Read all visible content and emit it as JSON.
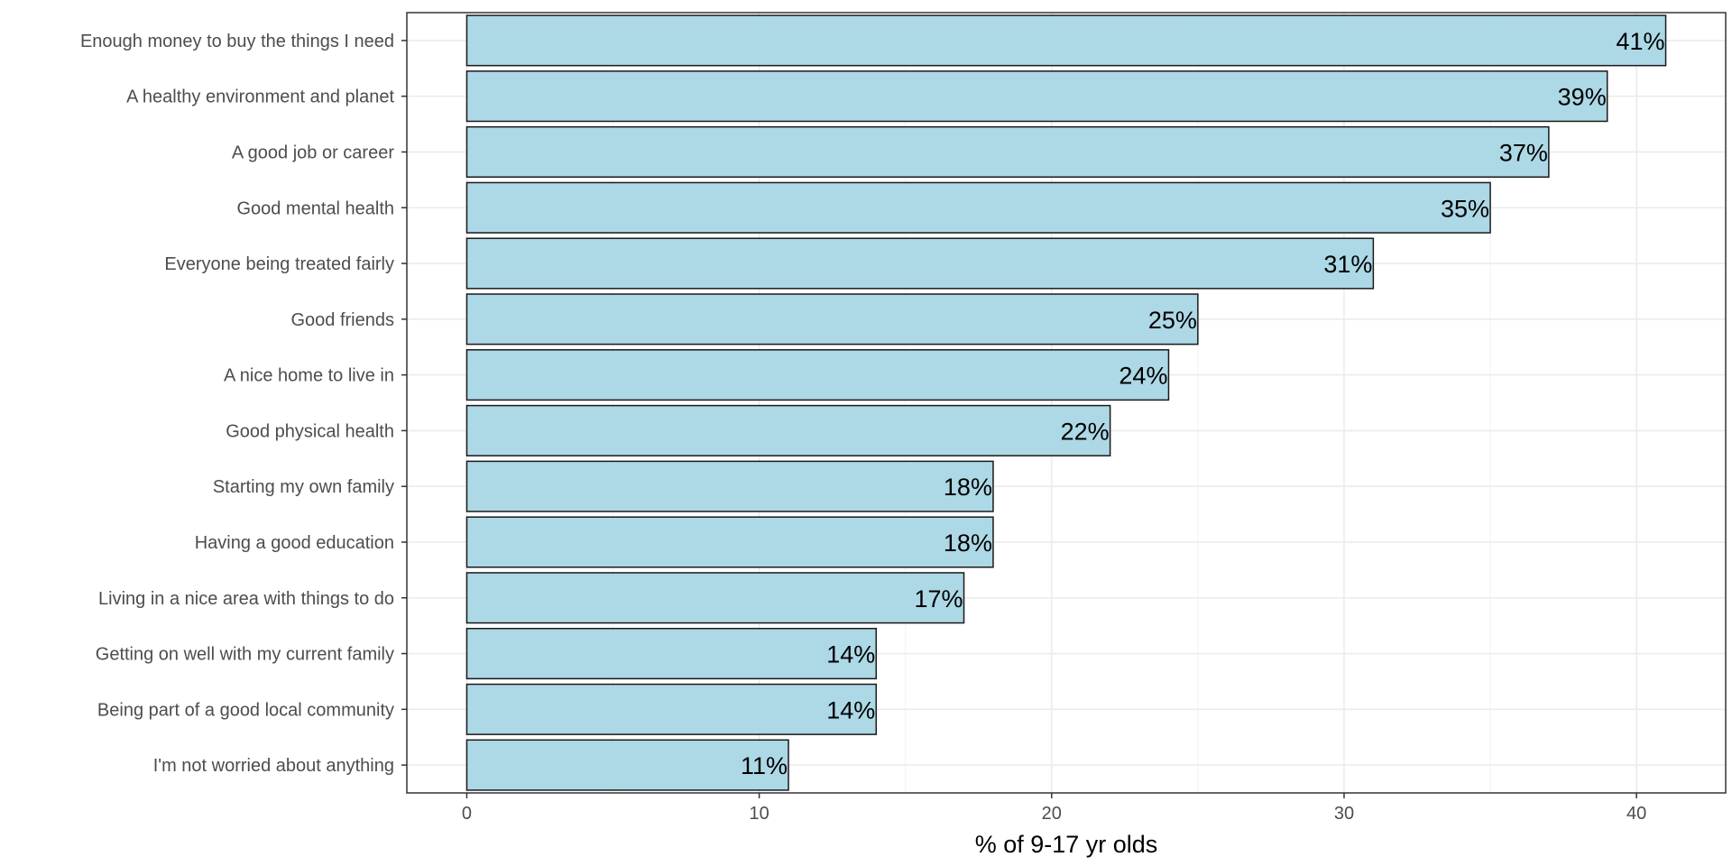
{
  "chart_data": {
    "type": "bar",
    "orientation": "horizontal",
    "categories": [
      "Enough money to buy the things I need",
      "A healthy environment and planet",
      "A good job or career",
      "Good mental health",
      "Everyone being treated fairly",
      "Good friends",
      "A nice home to live in",
      "Good physical health",
      "Starting my own family",
      "Having a good education",
      "Living in a nice area with things to do",
      "Getting on well with my current family",
      "Being part of a good local community",
      "I'm not worried about anything"
    ],
    "values": [
      41,
      39,
      37,
      35,
      31,
      25,
      24,
      22,
      18,
      18,
      17,
      14,
      14,
      11
    ],
    "data_labels": [
      "41%",
      "39%",
      "37%",
      "35%",
      "31%",
      "25%",
      "24%",
      "22%",
      "18%",
      "18%",
      "17%",
      "14%",
      "14%",
      "11%"
    ],
    "xlabel": "% of 9-17 yr olds",
    "ylabel": "",
    "title": "",
    "xlim": [
      -2.05,
      43.05
    ],
    "x_ticks": [
      0,
      10,
      20,
      30,
      40
    ],
    "grid": true,
    "legend": "none",
    "colors": {
      "bar_fill": "#add8e6",
      "bar_stroke": "#1a1a1a",
      "grid_major": "#ebebeb",
      "grid_minor": "#f4f4f4",
      "panel_border": "#333333"
    }
  }
}
